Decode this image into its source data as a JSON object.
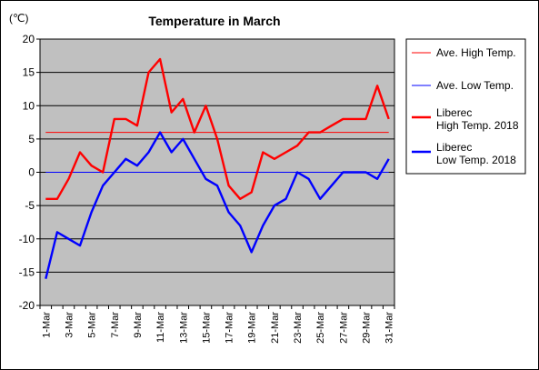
{
  "chart_data": {
    "type": "line",
    "title": "Temperature in March",
    "unit_label": "(℃)",
    "xlabel": "",
    "ylabel": "",
    "ylim": [
      -20,
      20
    ],
    "y_ticks": [
      20,
      15,
      10,
      5,
      0,
      -5,
      -10,
      -15,
      -20
    ],
    "x_tick_labels": [
      "1-Mar",
      "3-Mar",
      "5-Mar",
      "7-Mar",
      "9-Mar",
      "11-Mar",
      "13-Mar",
      "15-Mar",
      "17-Mar",
      "19-Mar",
      "21-Mar",
      "23-Mar",
      "25-Mar",
      "27-Mar",
      "29-Mar",
      "31-Mar"
    ],
    "x_days": [
      1,
      2,
      3,
      4,
      5,
      6,
      7,
      8,
      9,
      10,
      11,
      12,
      13,
      14,
      15,
      16,
      17,
      18,
      19,
      20,
      21,
      22,
      23,
      24,
      25,
      26,
      27,
      28,
      29,
      30,
      31
    ],
    "grid": true,
    "legend_position": "right",
    "series": [
      {
        "name": "Ave. High Temp.",
        "color": "#ff0000",
        "line": "thin",
        "values": [
          6,
          6,
          6,
          6,
          6,
          6,
          6,
          6,
          6,
          6,
          6,
          6,
          6,
          6,
          6,
          6,
          6,
          6,
          6,
          6,
          6,
          6,
          6,
          6,
          6,
          6,
          6,
          6,
          6,
          6,
          6
        ]
      },
      {
        "name": "Ave. Low Temp.",
        "color": "#0000ff",
        "line": "thin",
        "values": [
          0,
          0,
          0,
          0,
          0,
          0,
          0,
          0,
          0,
          0,
          0,
          0,
          0,
          0,
          0,
          0,
          0,
          0,
          0,
          0,
          0,
          0,
          0,
          0,
          0,
          0,
          0,
          0,
          0,
          0,
          0
        ]
      },
      {
        "name": "Liberec High Temp. 2018",
        "legend_lines": [
          "Liberec",
          "High Temp. 2018"
        ],
        "color": "#ff0000",
        "line": "thick",
        "values": [
          -4,
          -4,
          -1,
          3,
          1,
          0,
          8,
          8,
          7,
          15,
          17,
          9,
          11,
          6,
          10,
          5,
          -2,
          -4,
          -3,
          3,
          2,
          3,
          4,
          6,
          6,
          7,
          8,
          8,
          8,
          13,
          8
        ]
      },
      {
        "name": "Liberec Low Temp. 2018",
        "legend_lines": [
          "Liberec",
          "Low Temp. 2018"
        ],
        "color": "#0000ff",
        "line": "thick",
        "values": [
          -16,
          -9,
          -10,
          -11,
          -6,
          -2,
          0,
          2,
          1,
          3,
          6,
          3,
          5,
          2,
          -1,
          -2,
          -6,
          -8,
          -12,
          -8,
          -5,
          -4,
          0,
          -1,
          -4,
          -2,
          0,
          0,
          0,
          -1,
          2
        ]
      }
    ]
  }
}
